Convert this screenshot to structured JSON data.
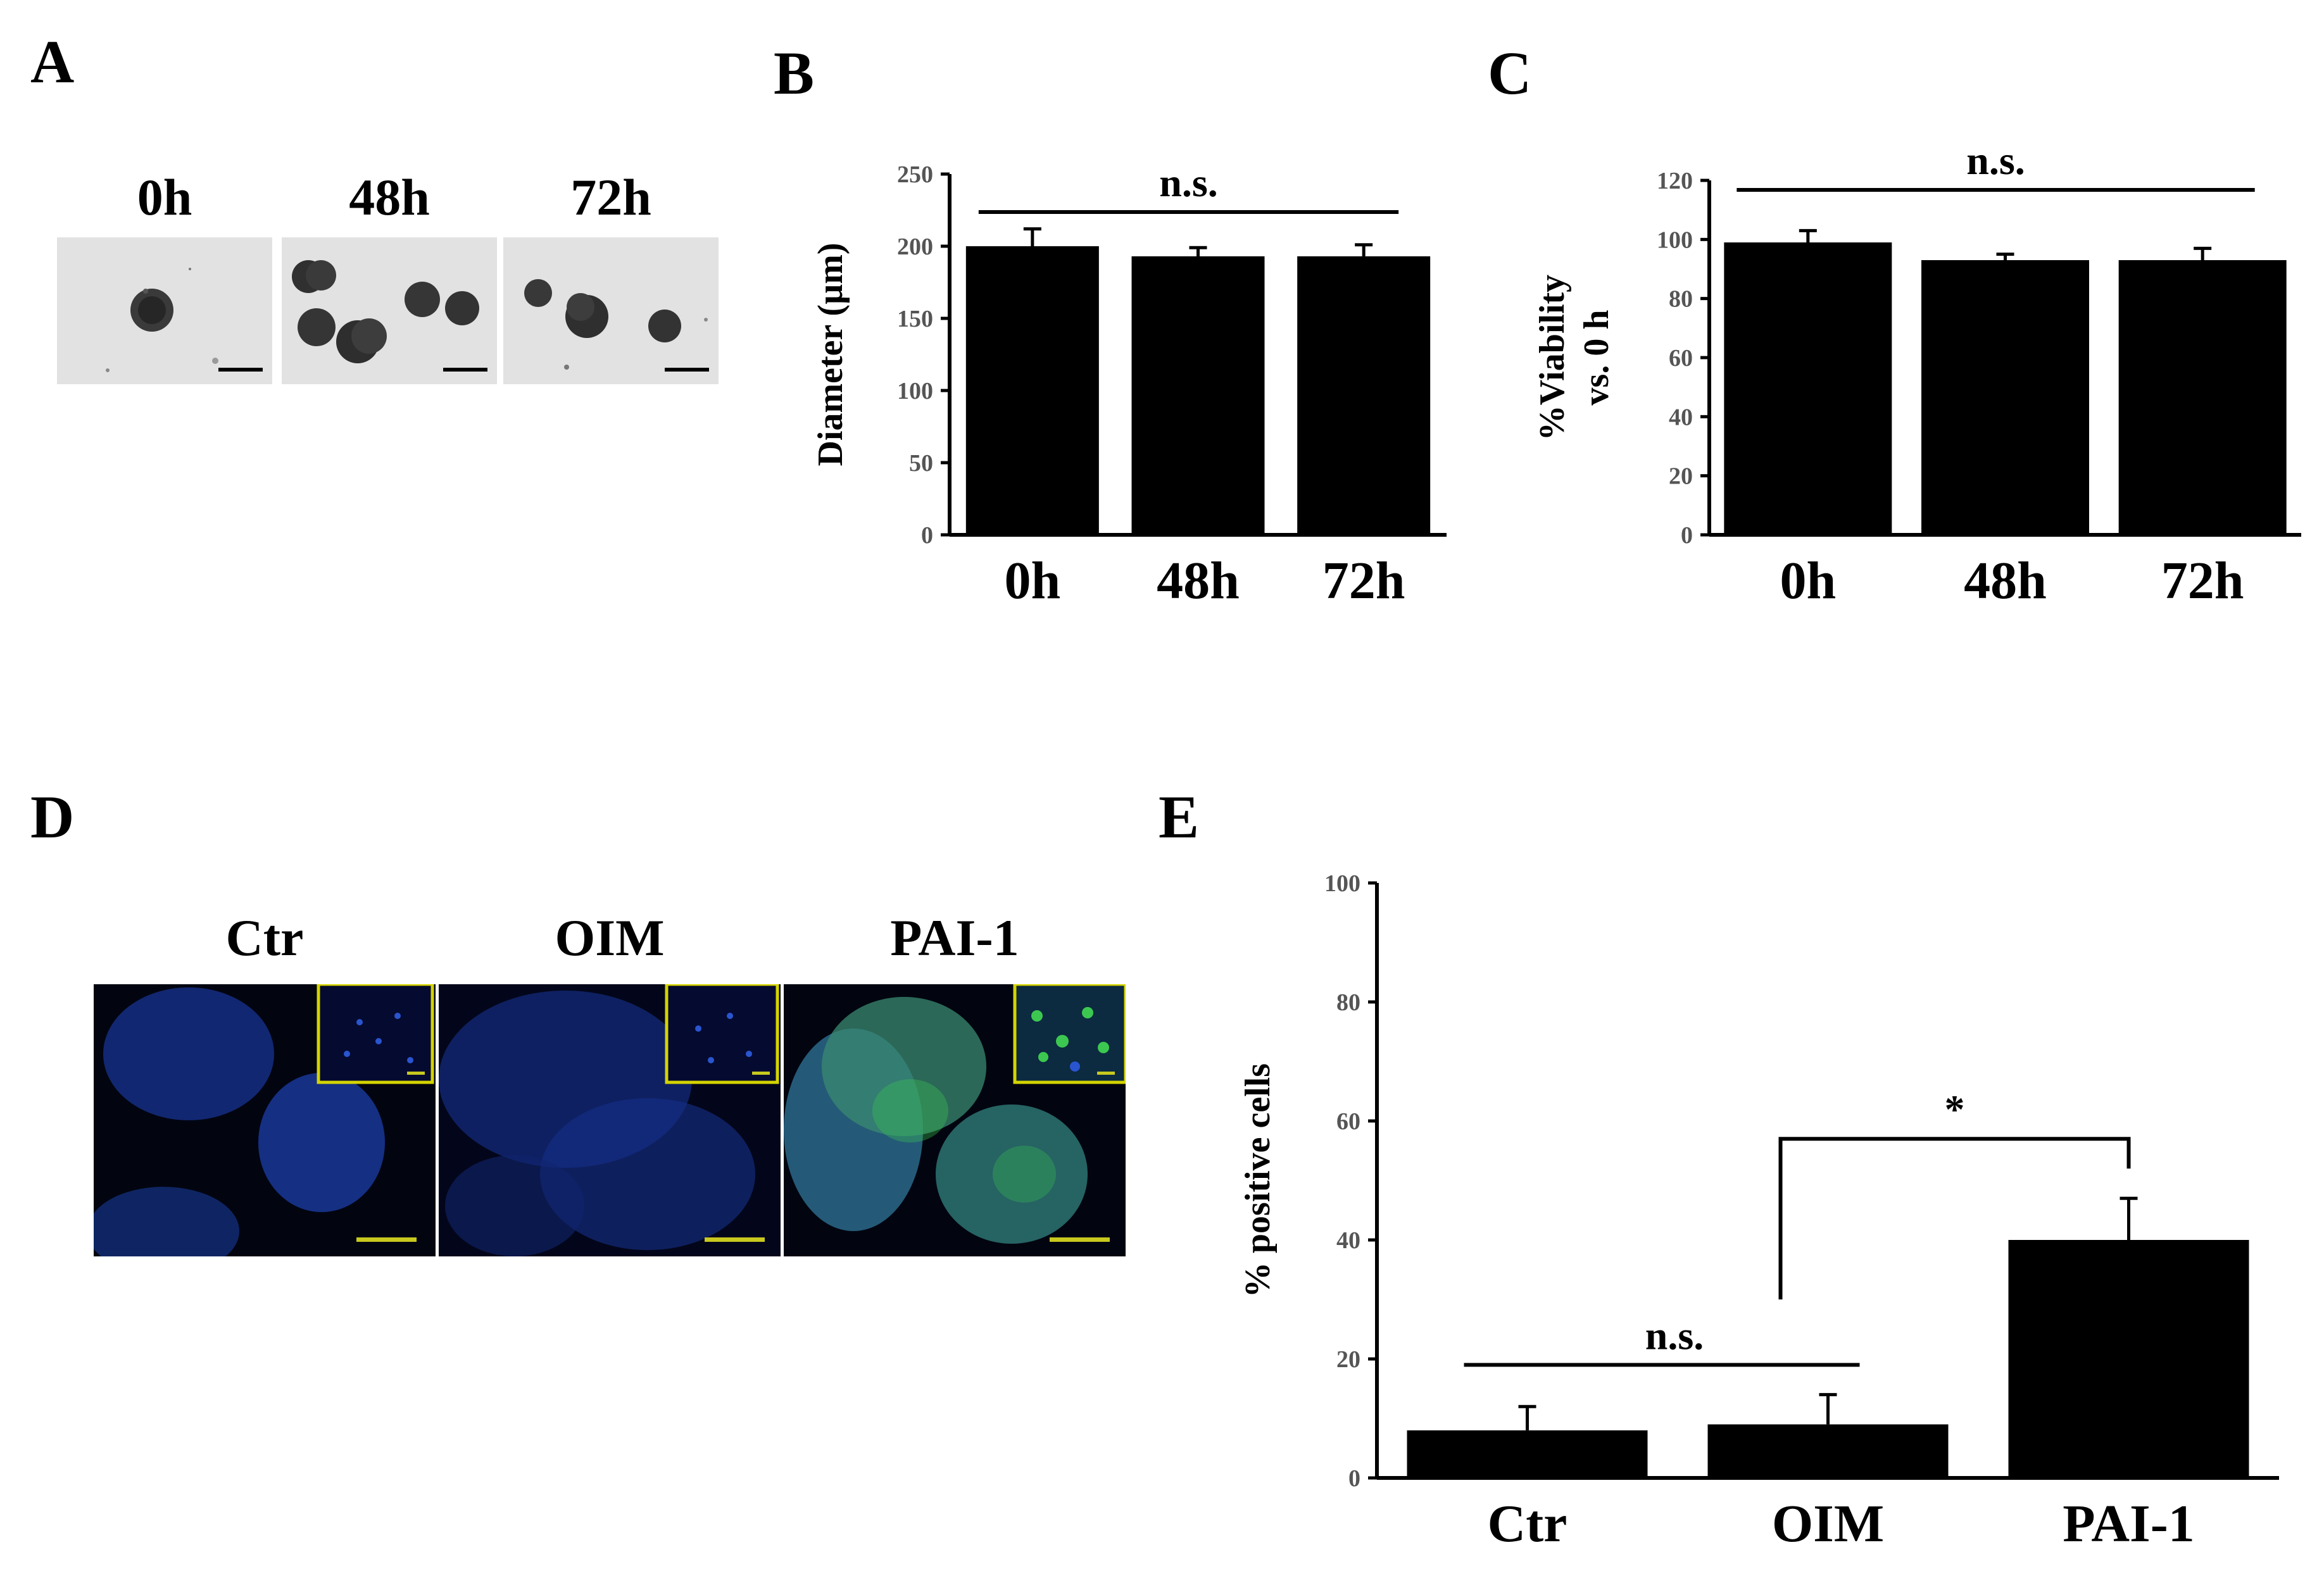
{
  "panels": {
    "A": {
      "letter": "A",
      "labels": [
        "0h",
        "48h",
        "72h"
      ]
    },
    "B": {
      "letter": "B"
    },
    "C": {
      "letter": "C"
    },
    "D": {
      "letter": "D",
      "labels": [
        "Ctr",
        "OIM",
        "PAI-1"
      ]
    },
    "E": {
      "letter": "E"
    }
  },
  "colors": {
    "bar": "#000000",
    "scale_bar_A": "#000000",
    "scale_bar_D": "#c8c81e",
    "inset_border": "#d4d400",
    "nuclei": "#1a3fae",
    "marker": "#3cc850"
  },
  "chart_data": [
    {
      "panel": "B",
      "type": "bar",
      "categories": [
        "0h",
        "48h",
        "72h"
      ],
      "values": [
        200,
        193,
        193
      ],
      "errors": [
        12,
        6,
        8
      ],
      "ylabel": "Diameter (µm)",
      "ylim": [
        0,
        250
      ],
      "yticks": [
        "0",
        "50",
        "100",
        "150",
        "200",
        "250"
      ],
      "annotations": [
        {
          "text": "n.s.",
          "from": 0,
          "to": 2
        }
      ]
    },
    {
      "panel": "C",
      "type": "bar",
      "categories": [
        "0h",
        "48h",
        "72h"
      ],
      "values": [
        99,
        93,
        93
      ],
      "errors": [
        4,
        2,
        4
      ],
      "ylabel_line1": "%Viability",
      "ylabel_line2": "vs. 0 h",
      "ylim": [
        0,
        120
      ],
      "yticks": [
        "0",
        "20",
        "40",
        "60",
        "80",
        "100",
        "120"
      ],
      "annotations": [
        {
          "text": "n.s.",
          "from": 0,
          "to": 2
        }
      ]
    },
    {
      "panel": "E",
      "type": "bar",
      "categories": [
        "Ctr",
        "OIM",
        "PAI-1"
      ],
      "values": [
        8,
        9,
        40
      ],
      "errors": [
        4,
        5,
        7
      ],
      "ylabel": "% positive cells",
      "ylim": [
        0,
        100
      ],
      "yticks": [
        "0",
        "20",
        "40",
        "60",
        "80",
        "100"
      ],
      "annotations": [
        {
          "text": "n.s.",
          "from": 0,
          "to": 1
        },
        {
          "text": "*",
          "from": 1,
          "to": 2
        }
      ]
    }
  ]
}
